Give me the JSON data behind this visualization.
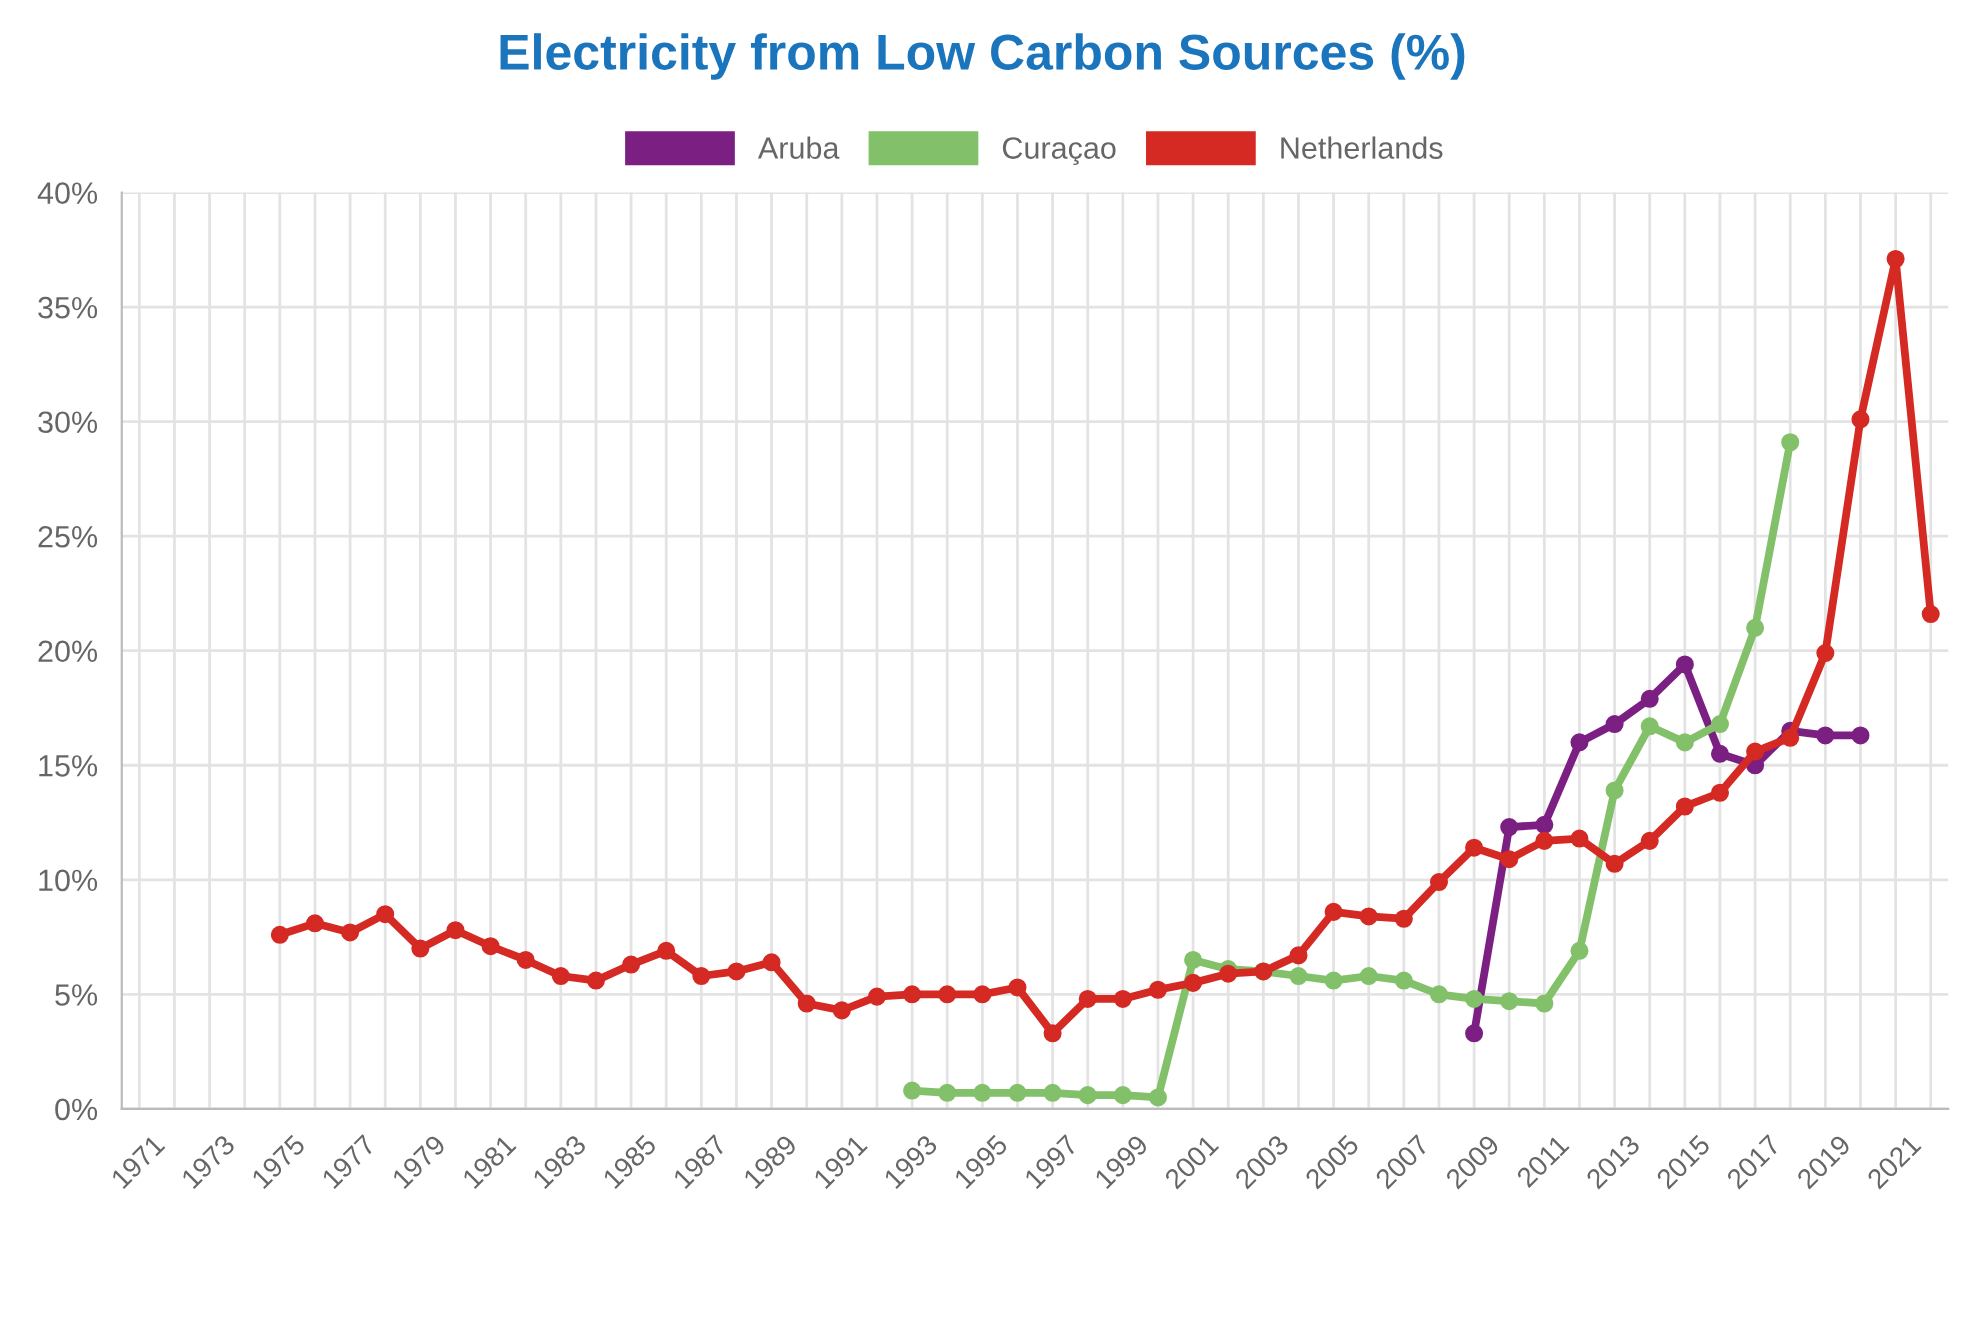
{
  "chart_data": {
    "type": "line",
    "title": "Electricity from Low Carbon Sources (%)",
    "categories": [
      "1971",
      null,
      "1973",
      null,
      "1975",
      null,
      "1977",
      null,
      "1979",
      null,
      "1981",
      null,
      "1983",
      null,
      "1985",
      null,
      "1987",
      null,
      "1989",
      null,
      "1991",
      null,
      "1993",
      null,
      "1995",
      null,
      "1997",
      null,
      "1999",
      null,
      "2001",
      null,
      "2003",
      null,
      "2005",
      null,
      "2007",
      null,
      "2009",
      null,
      "2011",
      null,
      "2013",
      null,
      "2015",
      null,
      "2017",
      null,
      "2019",
      null,
      "2021",
      null
    ],
    "series": [
      {
        "name": "Aruba",
        "color": "#7b1f82",
        "values": [
          null,
          null,
          null,
          null,
          null,
          null,
          null,
          null,
          null,
          null,
          null,
          null,
          null,
          null,
          null,
          null,
          null,
          null,
          null,
          null,
          null,
          null,
          null,
          null,
          null,
          null,
          null,
          null,
          null,
          null,
          null,
          null,
          null,
          null,
          null,
          null,
          null,
          null,
          3.3,
          12.3,
          12.4,
          16.0,
          16.8,
          17.9,
          19.4,
          15.5,
          15.0,
          16.5,
          16.3,
          16.3,
          null,
          null
        ]
      },
      {
        "name": "Curaçao",
        "color": "#82c16a",
        "values": [
          null,
          null,
          null,
          null,
          null,
          null,
          null,
          null,
          null,
          null,
          null,
          null,
          null,
          null,
          null,
          null,
          null,
          null,
          null,
          null,
          null,
          null,
          0.8,
          0.7,
          0.7,
          0.7,
          0.7,
          0.6,
          0.6,
          0.5,
          6.5,
          6.1,
          6.0,
          5.8,
          5.6,
          5.8,
          5.6,
          5.0,
          4.8,
          4.7,
          4.6,
          6.9,
          13.9,
          16.7,
          16.0,
          16.8,
          21.0,
          29.1,
          null,
          null,
          null,
          null
        ]
      },
      {
        "name": "Netherlands",
        "color": "#d42a23",
        "values": [
          null,
          null,
          null,
          null,
          7.6,
          8.1,
          7.7,
          8.5,
          7.0,
          7.8,
          7.1,
          6.5,
          5.8,
          5.6,
          6.3,
          6.9,
          5.8,
          6.0,
          6.4,
          4.6,
          4.3,
          4.9,
          5.0,
          5.0,
          5.0,
          5.3,
          3.3,
          4.8,
          4.8,
          5.2,
          5.5,
          5.9,
          6.0,
          6.7,
          8.6,
          8.4,
          8.3,
          9.9,
          11.4,
          10.9,
          11.7,
          11.8,
          10.7,
          11.7,
          13.2,
          13.8,
          15.6,
          16.2,
          19.9,
          30.1,
          37.1,
          21.6
        ]
      }
    ],
    "ylim": [
      0,
      40
    ],
    "yticks": [
      {
        "value": 0,
        "label": "0%"
      },
      {
        "value": 5,
        "label": "5%"
      },
      {
        "value": 10,
        "label": "10%"
      },
      {
        "value": 15,
        "label": "15%"
      },
      {
        "value": 20,
        "label": "20%"
      },
      {
        "value": 25,
        "label": "25%"
      },
      {
        "value": 30,
        "label": "30%"
      },
      {
        "value": 35,
        "label": "35%"
      },
      {
        "value": 40,
        "label": "40%"
      }
    ],
    "grid": true,
    "legend": "top",
    "marker": "circle",
    "line_style": "solid"
  }
}
